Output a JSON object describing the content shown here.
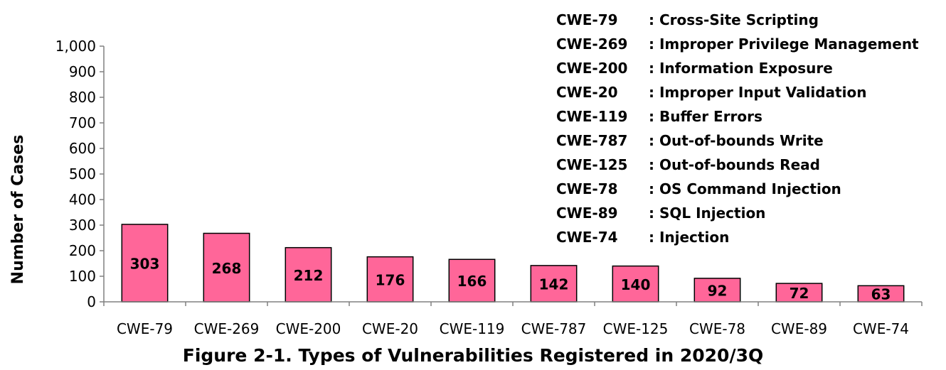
{
  "chart_data": {
    "type": "bar",
    "title": "Figure 2-1. Types of Vulnerabilities Registered in 2020/3Q",
    "xlabel": "",
    "ylabel": "Number of Cases",
    "ylim": [
      0,
      1000
    ],
    "yticks": [
      {
        "value": 0,
        "label": "0"
      },
      {
        "value": 100,
        "label": "100"
      },
      {
        "value": 200,
        "label": "200"
      },
      {
        "value": 300,
        "label": "300"
      },
      {
        "value": 400,
        "label": "400"
      },
      {
        "value": 500,
        "label": "500"
      },
      {
        "value": 600,
        "label": "600"
      },
      {
        "value": 700,
        "label": "700"
      },
      {
        "value": 800,
        "label": "800"
      },
      {
        "value": 900,
        "label": "900"
      },
      {
        "value": 1000,
        "label": "1,000"
      }
    ],
    "categories": [
      "CWE-79",
      "CWE-269",
      "CWE-200",
      "CWE-20",
      "CWE-119",
      "CWE-787",
      "CWE-125",
      "CWE-78",
      "CWE-89",
      "CWE-74"
    ],
    "values": [
      303,
      268,
      212,
      176,
      166,
      142,
      140,
      92,
      72,
      63
    ],
    "bar_color": "#ff6699",
    "grid": false,
    "legend_placement": "top-right",
    "legend": [
      {
        "code": "CWE-79",
        "desc": ": Cross-Site Scripting"
      },
      {
        "code": "CWE-269",
        "desc": ": Improper Privilege Management"
      },
      {
        "code": "CWE-200",
        "desc": ": Information Exposure"
      },
      {
        "code": "CWE-20",
        "desc": ": Improper Input Validation"
      },
      {
        "code": "CWE-119",
        "desc": ": Buffer Errors"
      },
      {
        "code": "CWE-787",
        "desc": ": Out-of-bounds Write"
      },
      {
        "code": "CWE-125",
        "desc": ": Out-of-bounds Read"
      },
      {
        "code": "CWE-78",
        "desc": ": OS Command Injection"
      },
      {
        "code": "CWE-89",
        "desc": ": SQL Injection"
      },
      {
        "code": "CWE-74",
        "desc": ": Injection"
      }
    ]
  }
}
